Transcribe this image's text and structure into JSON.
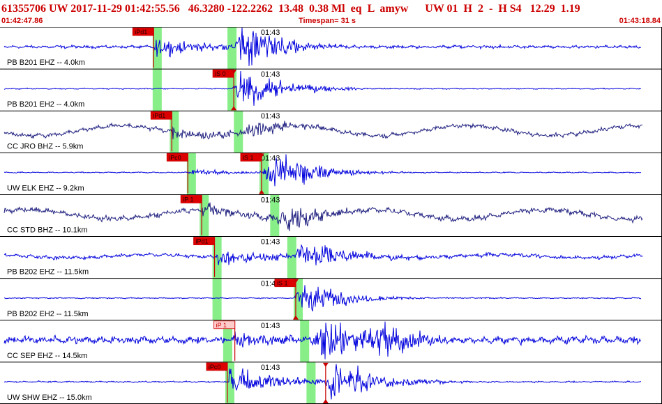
{
  "header": {
    "event_id": "61355706",
    "network": "UW",
    "origin_datetime": "2017-11-29 01:42:55.56",
    "latitude": "46.3280",
    "longitude": "-122.2262",
    "depth": "13.48",
    "magnitude": "0.38",
    "magnitude_type": "Ml",
    "event_type": "eq",
    "flag": "L",
    "analyst": "amyw",
    "source": "UW",
    "version": "01",
    "quality": "H",
    "code_num": "2",
    "sep": "-",
    "review": "H S4",
    "value1": "12.29",
    "value2": "1.19"
  },
  "subheader": {
    "start_time": "01:42:47.86",
    "timespan": "Timespan=  31 s",
    "end_time": "01:43:18.84"
  },
  "chart_data": {
    "type": "line",
    "title": "",
    "time_axis": {
      "start_s": 47.86,
      "end_s": 78.84,
      "minute_mark_label": "01:43",
      "minute_mark_s": 60.0
    },
    "colors": {
      "trace": "#0000dd",
      "trace_dark": "#101060",
      "pick_bar": "#cc0000",
      "pick_label_bg": "#dd0000",
      "pick_label_light_bg": "#ffcccc",
      "s_pick_green": "#88ee88",
      "grid": "#000000"
    },
    "traces": [
      {
        "label": "PB B201 EHZ -- 4.0km",
        "color": "#0000dd",
        "picks": [
          {
            "label": "iPd1",
            "t": 55.05,
            "style": "dark"
          }
        ],
        "p_green_t": 55.2,
        "s_green_t": 58.7,
        "onset_t": 55.1,
        "s_t": 58.7,
        "bg_amp": 0.08,
        "p_amp": 0.35,
        "s_amp": 0.85,
        "lp_amp": 0.0
      },
      {
        "label": "PB B201 EH2 -- 4.0km",
        "color": "#0000dd",
        "picks": [
          {
            "label": "iS 0",
            "t": 58.8,
            "style": "dark",
            "triangle": true
          }
        ],
        "p_green_t": 55.2,
        "s_green_t": 58.7,
        "onset_t": 58.7,
        "s_t": 58.7,
        "bg_amp": 0.03,
        "p_amp": 0.0,
        "s_amp": 0.75,
        "lp_amp": 0.0
      },
      {
        "label": "CC JRO BHZ -- 5.9km",
        "color": "#202080",
        "picks": [
          {
            "label": "iPd1",
            "t": 55.9,
            "style": "dark"
          }
        ],
        "p_green_t": 56.0,
        "s_green_t": 59.0,
        "onset_t": 55.9,
        "s_t": 59.0,
        "bg_amp": 0.12,
        "p_amp": 0.25,
        "s_amp": 0.35,
        "lp_amp": 0.32
      },
      {
        "label": "UW ELK EHZ -- 9.2km",
        "color": "#0000dd",
        "picks": [
          {
            "label": "iPc0",
            "t": 56.65,
            "style": "dark"
          },
          {
            "label": "iS 1",
            "t": 60.1,
            "style": "dark",
            "triangle": true
          }
        ],
        "p_green_t": 56.8,
        "s_green_t": 60.2,
        "onset_t": 56.7,
        "s_t": 60.1,
        "bg_amp": 0.03,
        "p_amp": 0.12,
        "s_amp": 0.8,
        "lp_amp": 0.0
      },
      {
        "label": "CC STD BHZ -- 10.1km",
        "color": "#202080",
        "picks": [
          {
            "label": "iP 1",
            "t": 57.3,
            "style": "dark"
          }
        ],
        "p_green_t": 57.4,
        "s_green_t": 60.7,
        "onset_t": 57.3,
        "s_t": 60.7,
        "bg_amp": 0.15,
        "p_amp": 0.3,
        "s_amp": 0.5,
        "lp_amp": 0.3
      },
      {
        "label": "PB B202 EHZ -- 11.5km",
        "color": "#0000dd",
        "picks": [
          {
            "label": "iPd1",
            "t": 57.9,
            "style": "dark"
          }
        ],
        "p_green_t": 58.0,
        "s_green_t": 61.5,
        "onset_t": 57.9,
        "s_t": 61.5,
        "bg_amp": 0.1,
        "p_amp": 0.3,
        "s_amp": 0.7,
        "lp_amp": 0.1
      },
      {
        "label": "PB B202 EH2 -- 11.5km",
        "color": "#0000dd",
        "picks": [
          {
            "label": "iS 1",
            "t": 61.7,
            "style": "dark",
            "triangle": true
          }
        ],
        "p_green_t": 58.0,
        "s_green_t": 61.8,
        "onset_t": 61.6,
        "s_t": 61.6,
        "bg_amp": 0.03,
        "p_amp": 0.0,
        "s_amp": 0.65,
        "lp_amp": 0.0
      },
      {
        "label": "CC SEP EHZ -- 14.5km",
        "color": "#0000dd",
        "picks": [
          {
            "label": "iP 1",
            "t": 58.85,
            "style": "light"
          }
        ],
        "p_green_t": 58.5,
        "s_green_t": 62.1,
        "onset_t": 58.85,
        "s_t": 62.5,
        "bg_amp": 0.2,
        "p_amp": 0.3,
        "s_amp": 0.85,
        "lp_amp": 0.0,
        "delay_peak_t": 66.0
      },
      {
        "label": "UW SHW EHZ -- 15.0km",
        "color": "#0000dd",
        "picks": [
          {
            "label": "iPc0",
            "t": 58.5,
            "style": "dark"
          },
          {
            "label": "",
            "t": 63.1,
            "style": "dark",
            "triangle": true
          }
        ],
        "p_green_t": 58.6,
        "s_green_t": 62.4,
        "onset_t": 58.6,
        "s_t": 63.0,
        "bg_amp": 0.04,
        "p_amp": 0.55,
        "s_amp": 0.85,
        "lp_amp": 0.0
      }
    ]
  }
}
